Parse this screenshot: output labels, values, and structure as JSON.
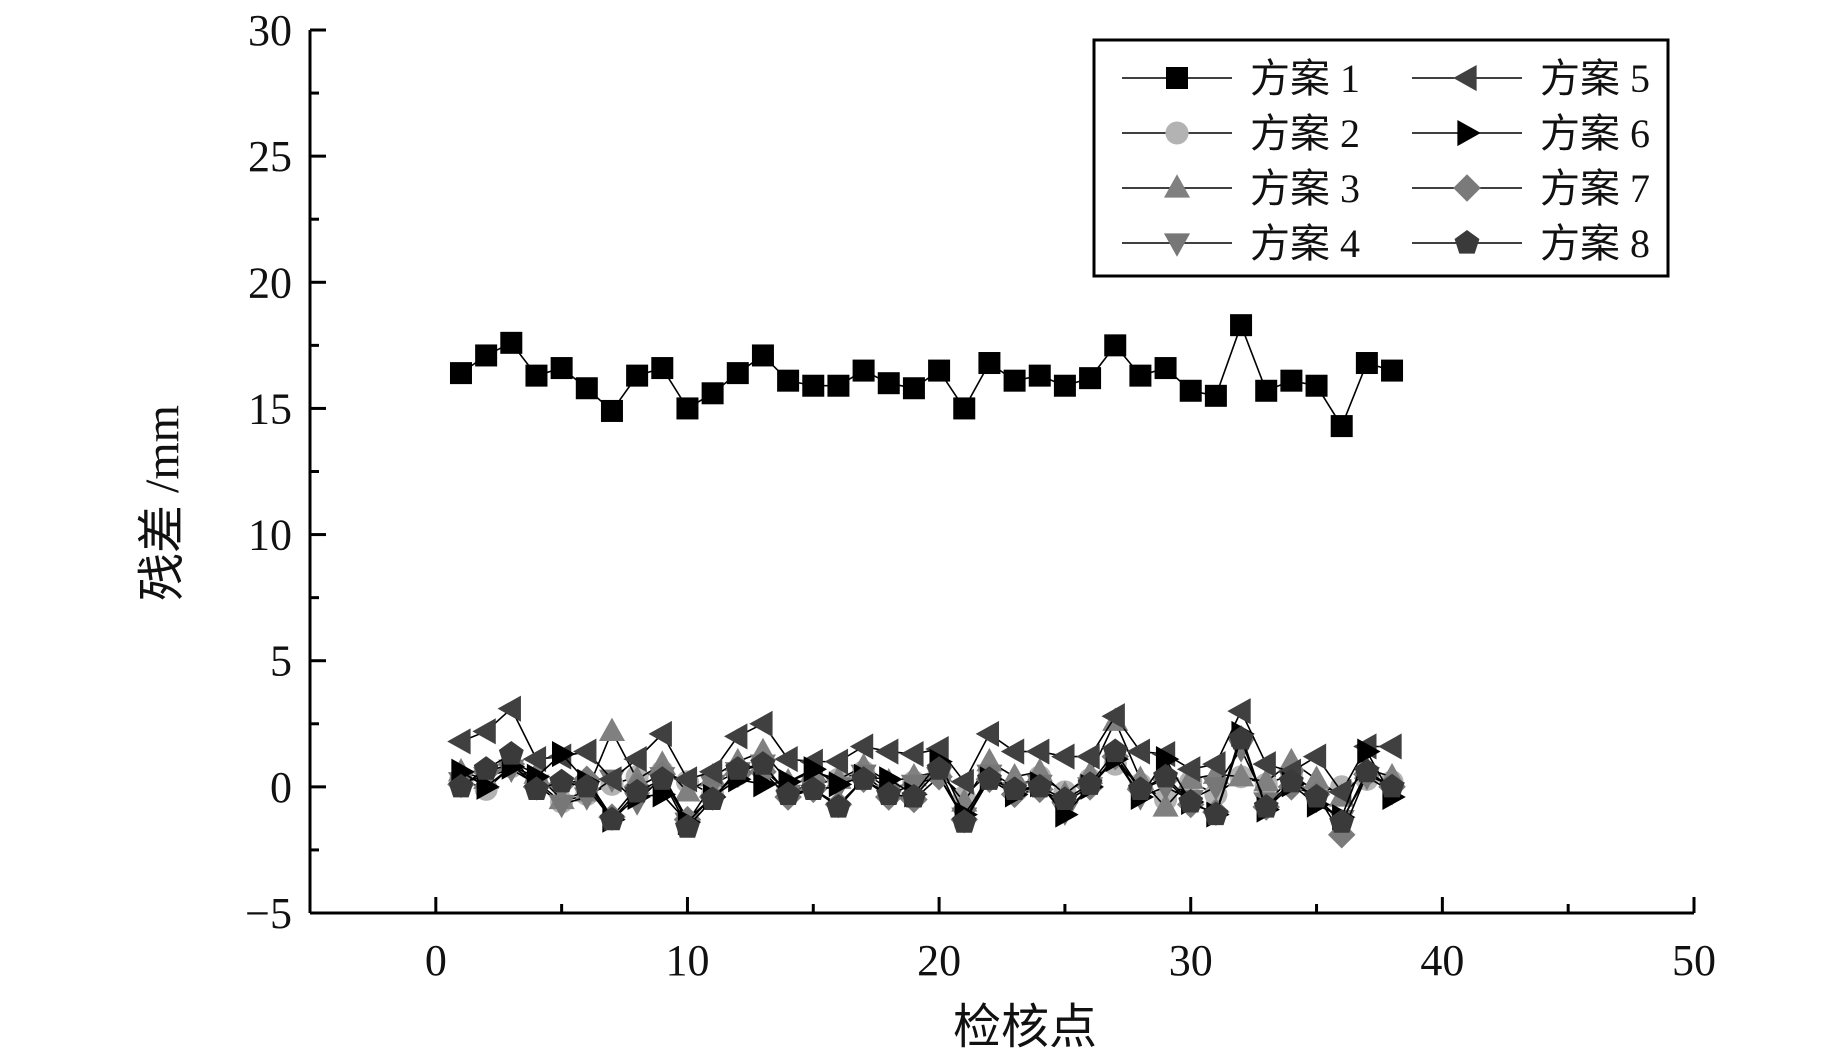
{
  "chart_data": {
    "type": "line",
    "title": "",
    "xlabel": "检核点",
    "ylabel": "残差 /mm",
    "xlim": [
      -5,
      50
    ],
    "ylim": [
      -5,
      30
    ],
    "xticks": [
      0,
      10,
      20,
      30,
      40,
      50
    ],
    "yticks": [
      -5,
      0,
      5,
      10,
      15,
      20,
      25,
      30
    ],
    "xtick_labels": [
      "0",
      "10",
      "20",
      "30",
      "40",
      "50"
    ],
    "ytick_labels": [
      "−5",
      "0",
      "5",
      "10",
      "15",
      "20",
      "25",
      "30"
    ],
    "grid": false,
    "legend_position": "top-right",
    "x": [
      1,
      2,
      3,
      4,
      5,
      6,
      7,
      8,
      9,
      10,
      11,
      12,
      13,
      14,
      15,
      16,
      17,
      18,
      19,
      20,
      21,
      22,
      23,
      24,
      25,
      26,
      27,
      28,
      29,
      30,
      31,
      32,
      33,
      34,
      35,
      36,
      37,
      38
    ],
    "series": [
      {
        "name": "方案 1",
        "marker": "square",
        "color": "#000000",
        "values": [
          16.4,
          17.1,
          17.6,
          16.3,
          16.6,
          15.8,
          14.9,
          16.3,
          16.6,
          15.0,
          15.6,
          16.4,
          17.1,
          16.1,
          15.9,
          15.9,
          16.5,
          16.0,
          15.8,
          16.5,
          15.0,
          16.8,
          16.1,
          16.3,
          15.9,
          16.2,
          17.5,
          16.3,
          16.6,
          15.7,
          15.5,
          18.3,
          15.7,
          16.1,
          15.9,
          14.3,
          16.8,
          16.5
        ]
      },
      {
        "name": "方案 2",
        "marker": "circle",
        "color": "#b3b3b3",
        "values": [
          0.3,
          -0.1,
          0.8,
          0.2,
          -0.6,
          -0.3,
          0.1,
          0.4,
          0.6,
          0.2,
          -0.3,
          0.5,
          0.7,
          -0.2,
          0.1,
          0.3,
          0.6,
          -0.1,
          0.2,
          0.5,
          -0.4,
          0.6,
          0.0,
          0.4,
          -0.2,
          0.3,
          0.9,
          0.1,
          -0.5,
          0.2,
          -0.3,
          0.4,
          0.1,
          0.5,
          -0.2,
          0.0,
          0.3,
          0.2
        ]
      },
      {
        "name": "方案 3",
        "marker": "triangle-up",
        "color": "#808080",
        "values": [
          0.6,
          0.3,
          1.0,
          0.5,
          -0.5,
          -0.2,
          2.2,
          0.3,
          0.9,
          -0.2,
          0.4,
          1.0,
          1.4,
          0.2,
          0.6,
          0.3,
          0.8,
          0.2,
          0.4,
          0.6,
          -0.6,
          1.0,
          0.4,
          0.6,
          -0.3,
          0.5,
          2.6,
          0.3,
          -0.8,
          0.3,
          0.5,
          0.4,
          0.2,
          1.0,
          0.3,
          -0.4,
          0.7,
          0.4
        ]
      },
      {
        "name": "方案 4",
        "marker": "triangle-down",
        "color": "#777777",
        "values": [
          0.2,
          0.4,
          0.7,
          0.1,
          -0.7,
          -0.4,
          0.3,
          -0.6,
          0.4,
          -1.4,
          0.1,
          0.6,
          0.9,
          -0.3,
          -0.1,
          0.0,
          0.5,
          -0.3,
          0.1,
          0.4,
          -1.2,
          0.5,
          -0.2,
          0.1,
          -1.0,
          0.0,
          1.2,
          -0.4,
          0.0,
          -0.5,
          0.0,
          1.5,
          -0.6,
          0.3,
          -0.5,
          -1.3,
          0.4,
          -0.2
        ]
      },
      {
        "name": "方案 5",
        "marker": "triangle-left",
        "color": "#404040",
        "values": [
          1.8,
          2.2,
          3.1,
          1.1,
          1.2,
          1.4,
          0.3,
          1.1,
          2.1,
          0.3,
          0.6,
          2.0,
          2.5,
          1.1,
          1.0,
          1.0,
          1.6,
          1.4,
          1.3,
          1.5,
          0.2,
          2.1,
          1.4,
          1.4,
          1.2,
          1.2,
          2.8,
          1.4,
          1.3,
          0.7,
          0.9,
          3.0,
          0.9,
          0.6,
          1.2,
          -0.2,
          1.6,
          1.6
        ]
      },
      {
        "name": "方案 6",
        "marker": "triangle-right",
        "color": "#000000",
        "values": [
          0.6,
          0.0,
          0.8,
          0.4,
          1.3,
          0.2,
          -1.3,
          -0.4,
          -0.3,
          -1.4,
          -0.4,
          0.3,
          0.1,
          0.2,
          0.7,
          0.1,
          0.4,
          0.3,
          -0.3,
          1.0,
          -1.1,
          0.3,
          -0.3,
          0.1,
          -1.1,
          0.0,
          1.1,
          -0.4,
          1.1,
          -0.6,
          -1.1,
          2.1,
          -0.9,
          0.1,
          -0.7,
          -1.2,
          1.4,
          -0.4
        ]
      },
      {
        "name": "方案 7",
        "marker": "diamond",
        "color": "#7a7a7a",
        "values": [
          0.1,
          0.6,
          0.9,
          0.0,
          0.1,
          0.3,
          -1.2,
          0.0,
          0.5,
          -1.3,
          -0.4,
          0.5,
          0.6,
          -0.4,
          -0.1,
          -0.7,
          0.3,
          -0.4,
          -0.5,
          0.4,
          -1.3,
          0.3,
          -0.3,
          -0.1,
          -0.6,
          0.0,
          1.2,
          -0.1,
          0.3,
          -0.7,
          -1.0,
          1.9,
          -0.8,
          0.0,
          -0.3,
          -1.9,
          0.5,
          0.0
        ]
      },
      {
        "name": "方案 8",
        "marker": "pentagon",
        "color": "#3a3a3a",
        "values": [
          0.0,
          0.7,
          1.3,
          -0.1,
          0.2,
          0.0,
          -1.3,
          -0.2,
          0.3,
          -1.6,
          -0.5,
          0.7,
          0.9,
          -0.3,
          -0.1,
          -0.8,
          0.3,
          -0.3,
          -0.4,
          0.7,
          -1.4,
          0.3,
          -0.1,
          0.0,
          -0.5,
          0.1,
          1.4,
          -0.1,
          0.4,
          -0.6,
          -1.1,
          1.9,
          -0.8,
          0.2,
          -0.4,
          -1.4,
          0.6,
          0.0
        ]
      }
    ]
  }
}
